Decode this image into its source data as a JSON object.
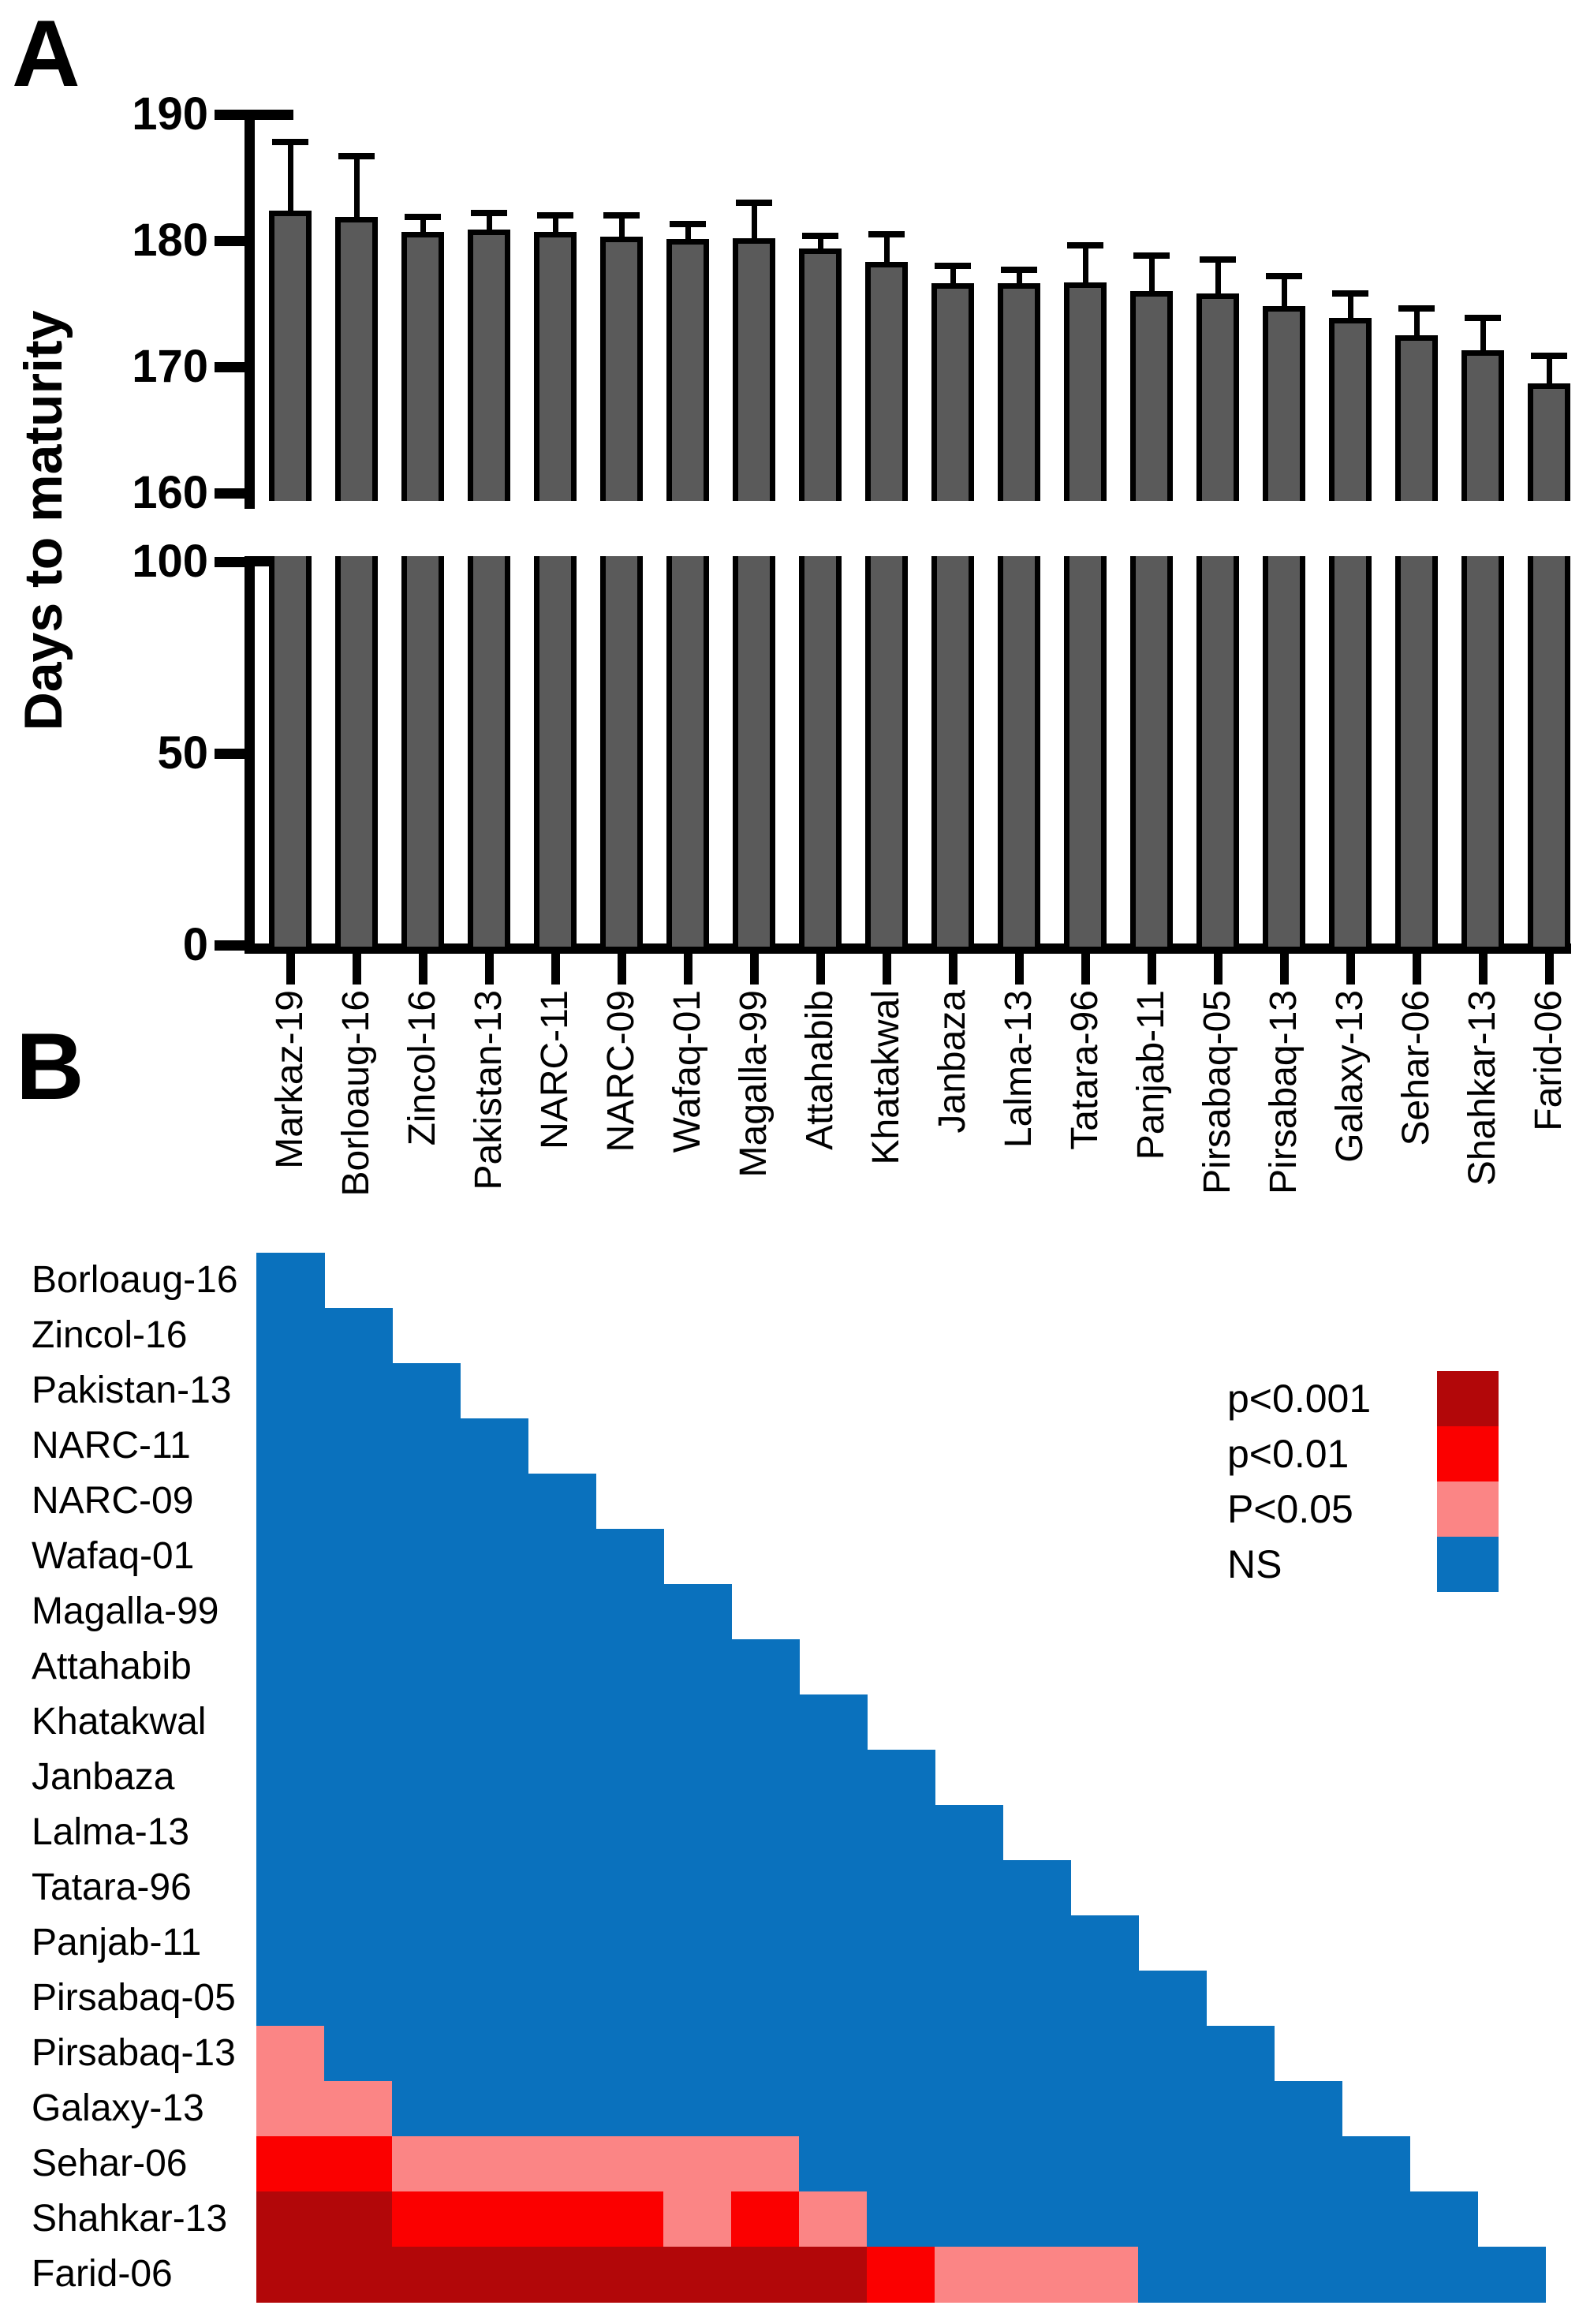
{
  "figure": {
    "panelA_label": "A",
    "panelB_label": "B",
    "y_axis_title": "Days to maturity"
  },
  "chart_data": [
    {
      "type": "bar",
      "title": "",
      "xlabel": "",
      "ylabel": "Days to maturity",
      "grid": false,
      "axis_break": {
        "top_range": [
          160,
          190
        ],
        "bottom_range": [
          0,
          100
        ]
      },
      "top_axis_ticks": [
        190,
        180,
        170,
        160
      ],
      "bottom_axis_ticks": [
        100,
        50,
        0
      ],
      "bar_color": "#5a5a5a",
      "categories": [
        "Markaz-19",
        "Borloaug-16",
        "Zincol-16",
        "Pakistan-13",
        "NARC-11",
        "NARC-09",
        "Wafaq-01",
        "Magalla-99",
        "Attahabib",
        "Khatakwal",
        "Janbaza",
        "Lalma-13",
        "Tatara-96",
        "Panjab-11",
        "Pirsabaq-05",
        "Pirsabaq-13",
        "Galaxy-13",
        "Sehar-06",
        "Shahkar-13",
        "Farid-06"
      ],
      "values": [
        182.4,
        181.9,
        180.7,
        180.9,
        180.7,
        180.3,
        180.1,
        180.2,
        179.4,
        178.3,
        176.6,
        176.6,
        176.7,
        176.0,
        175.8,
        174.8,
        173.9,
        172.5,
        171.3,
        168.7
      ],
      "errors_upper": [
        5.4,
        4.8,
        1.2,
        1.3,
        1.3,
        1.7,
        1.2,
        2.8,
        1.0,
        2.2,
        1.4,
        1.1,
        2.9,
        2.8,
        2.7,
        2.4,
        1.9,
        2.1,
        2.6,
        2.2
      ]
    },
    {
      "type": "heatmap",
      "title": "",
      "shape": "lower-triangle",
      "col_labels": [
        "Markaz-19",
        "Borloaug-16",
        "Zincol-16",
        "Pakistan-13",
        "NARC-11",
        "NARC-09",
        "Wafaq-01",
        "Magalla-99",
        "Attahabib",
        "Khatakwal",
        "Janbaza",
        "Lalma-13",
        "Tatara-96",
        "Panjab-11",
        "Pirsabaq-05",
        "Pirsabaq-13",
        "Galaxy-13",
        "Sehar-06",
        "Shahkar-13"
      ],
      "row_labels": [
        "Borloaug-16",
        "Zincol-16",
        "Pakistan-13",
        "NARC-11",
        "NARC-09",
        "Wafaq-01",
        "Magalla-99",
        "Attahabib",
        "Khatakwal",
        "Janbaza",
        "Lalma-13",
        "Tatara-96",
        "Panjab-11",
        "Pirsabaq-05",
        "Pirsabaq-13",
        "Galaxy-13",
        "Sehar-06",
        "Shahkar-13",
        "Farid-06"
      ],
      "color_key": {
        "p001": "#b20709",
        "p01": "#fb0000",
        "p05": "#fb8585",
        "ns": "#0a71bd"
      },
      "legend": [
        {
          "label": "p<0.001",
          "code": "p001"
        },
        {
          "label": "p<0.01",
          "code": "p01"
        },
        {
          "label": "P<0.05",
          "code": "p05"
        },
        {
          "label": "NS",
          "code": "ns"
        }
      ],
      "rows": [
        [
          "ns"
        ],
        [
          "ns",
          "ns"
        ],
        [
          "ns",
          "ns",
          "ns"
        ],
        [
          "ns",
          "ns",
          "ns",
          "ns"
        ],
        [
          "ns",
          "ns",
          "ns",
          "ns",
          "ns"
        ],
        [
          "ns",
          "ns",
          "ns",
          "ns",
          "ns",
          "ns"
        ],
        [
          "ns",
          "ns",
          "ns",
          "ns",
          "ns",
          "ns",
          "ns"
        ],
        [
          "ns",
          "ns",
          "ns",
          "ns",
          "ns",
          "ns",
          "ns",
          "ns"
        ],
        [
          "ns",
          "ns",
          "ns",
          "ns",
          "ns",
          "ns",
          "ns",
          "ns",
          "ns"
        ],
        [
          "ns",
          "ns",
          "ns",
          "ns",
          "ns",
          "ns",
          "ns",
          "ns",
          "ns",
          "ns"
        ],
        [
          "ns",
          "ns",
          "ns",
          "ns",
          "ns",
          "ns",
          "ns",
          "ns",
          "ns",
          "ns",
          "ns"
        ],
        [
          "ns",
          "ns",
          "ns",
          "ns",
          "ns",
          "ns",
          "ns",
          "ns",
          "ns",
          "ns",
          "ns",
          "ns"
        ],
        [
          "ns",
          "ns",
          "ns",
          "ns",
          "ns",
          "ns",
          "ns",
          "ns",
          "ns",
          "ns",
          "ns",
          "ns",
          "ns"
        ],
        [
          "ns",
          "ns",
          "ns",
          "ns",
          "ns",
          "ns",
          "ns",
          "ns",
          "ns",
          "ns",
          "ns",
          "ns",
          "ns",
          "ns"
        ],
        [
          "p05",
          "ns",
          "ns",
          "ns",
          "ns",
          "ns",
          "ns",
          "ns",
          "ns",
          "ns",
          "ns",
          "ns",
          "ns",
          "ns",
          "ns"
        ],
        [
          "p05",
          "p05",
          "ns",
          "ns",
          "ns",
          "ns",
          "ns",
          "ns",
          "ns",
          "ns",
          "ns",
          "ns",
          "ns",
          "ns",
          "ns",
          "ns"
        ],
        [
          "p01",
          "p01",
          "p05",
          "p05",
          "p05",
          "p05",
          "p05",
          "p05",
          "ns",
          "ns",
          "ns",
          "ns",
          "ns",
          "ns",
          "ns",
          "ns",
          "ns"
        ],
        [
          "p001",
          "p001",
          "p01",
          "p01",
          "p01",
          "p01",
          "p05",
          "p01",
          "p05",
          "ns",
          "ns",
          "ns",
          "ns",
          "ns",
          "ns",
          "ns",
          "ns",
          "ns"
        ],
        [
          "p001",
          "p001",
          "p001",
          "p001",
          "p001",
          "p001",
          "p001",
          "p001",
          "p001",
          "p01",
          "p05",
          "p05",
          "p05",
          "ns",
          "ns",
          "ns",
          "ns",
          "ns",
          "ns"
        ]
      ]
    }
  ]
}
